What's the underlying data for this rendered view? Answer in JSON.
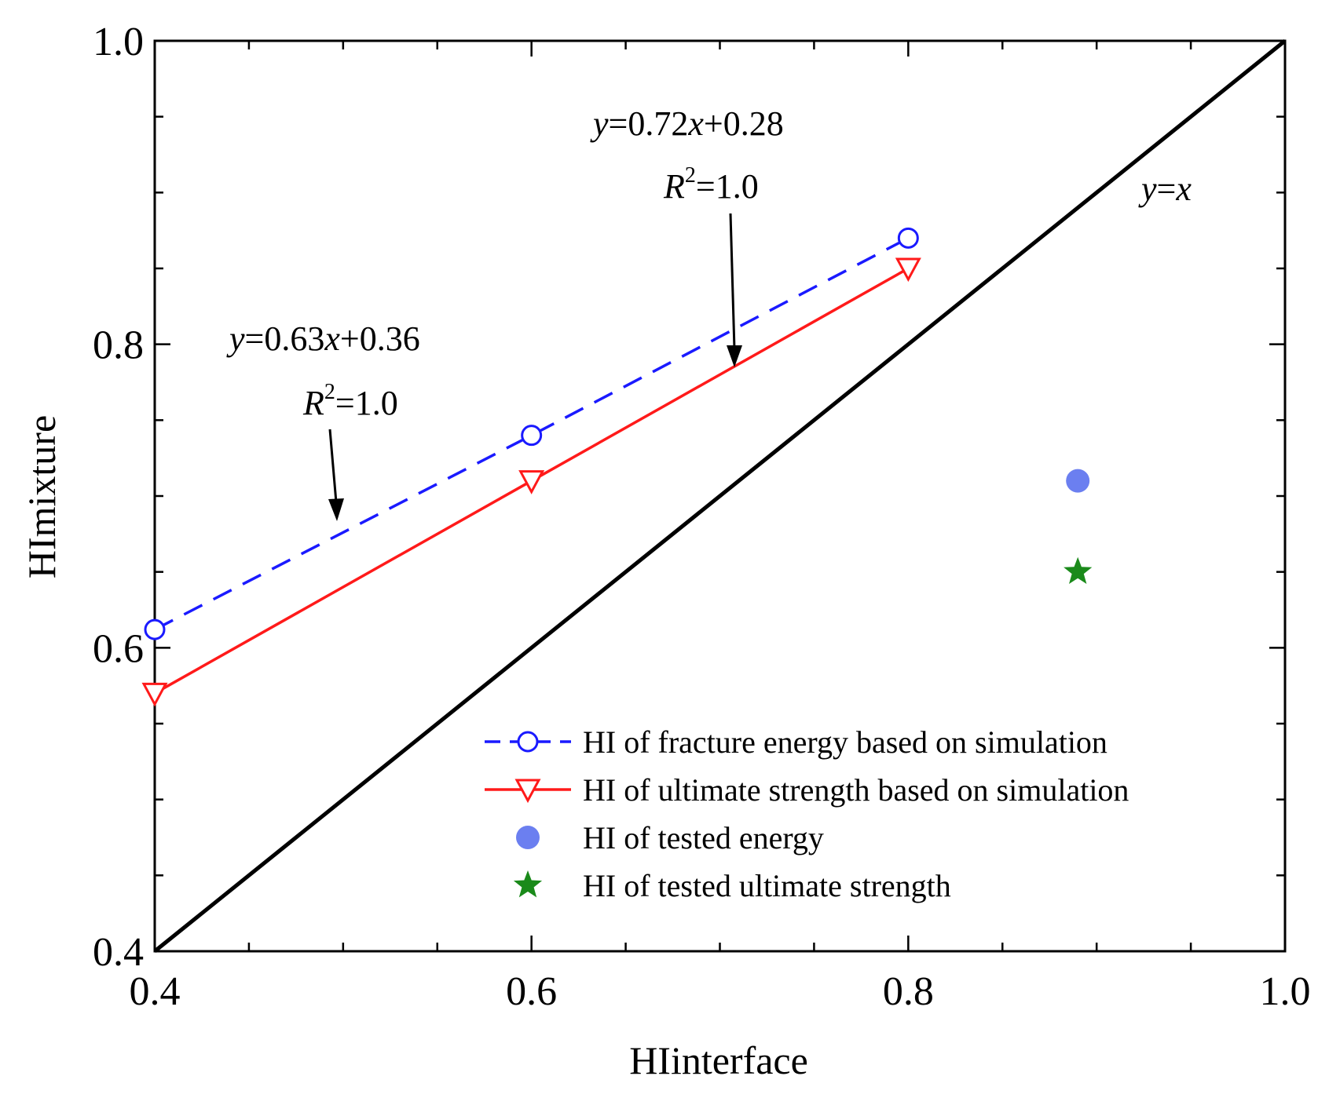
{
  "chart_data": {
    "type": "line",
    "title": "",
    "xlabel": "HIinterface",
    "ylabel": "HImixture",
    "xlim": [
      0.4,
      1.0
    ],
    "ylim": [
      0.4,
      1.0
    ],
    "x_major_ticks": [
      "0.4",
      "0.6",
      "0.8",
      "1.0"
    ],
    "y_major_ticks": [
      "0.4",
      "0.6",
      "0.8",
      "1.0"
    ],
    "grid": false,
    "legend_position": "bottom-right",
    "colors": {
      "blue": "#1a1aff",
      "red": "#ff1a1a",
      "tested_blue": "#6b7ff0",
      "green": "#1a8a1a",
      "black": "#000000"
    },
    "series": [
      {
        "name": "HI of fracture energy based on simulation",
        "style": "dashed-line-open-circle",
        "color": "#1a1aff",
        "x": [
          0.4,
          0.6,
          0.8
        ],
        "y": [
          0.612,
          0.74,
          0.87
        ]
      },
      {
        "name": "HI of ultimate strength based on simulation",
        "style": "solid-line-open-triangle-down",
        "color": "#ff1a1a",
        "x": [
          0.4,
          0.6,
          0.8
        ],
        "y": [
          0.57,
          0.71,
          0.85
        ]
      },
      {
        "name": "HI of tested energy",
        "style": "filled-circle",
        "color": "#6b7ff0",
        "x": [
          0.89
        ],
        "y": [
          0.71
        ]
      },
      {
        "name": "HI of tested ultimate strength",
        "style": "filled-star",
        "color": "#1a8a1a",
        "x": [
          0.89
        ],
        "y": [
          0.65
        ]
      },
      {
        "name": "y=x",
        "style": "solid-line",
        "color": "#000000",
        "x": [
          0.4,
          1.0
        ],
        "y": [
          0.4,
          1.0
        ]
      }
    ],
    "annotations": {
      "eq_upper_prefix": "y",
      "eq_upper_rest": "=0.72",
      "eq_upper_var": "x",
      "eq_upper_tail": "+0.28",
      "r2_upper_r": "R",
      "r2_upper_sup": "2",
      "r2_upper_val": "=1.0",
      "eq_lower_prefix": "y",
      "eq_lower_rest": "=0.63",
      "eq_lower_var": "x",
      "eq_lower_tail": "+0.36",
      "r2_lower_r": "R",
      "r2_lower_sup": "2",
      "r2_lower_val": "=1.0",
      "yx_label_y": "y",
      "yx_label_eq": "=",
      "yx_label_x": "x"
    }
  }
}
